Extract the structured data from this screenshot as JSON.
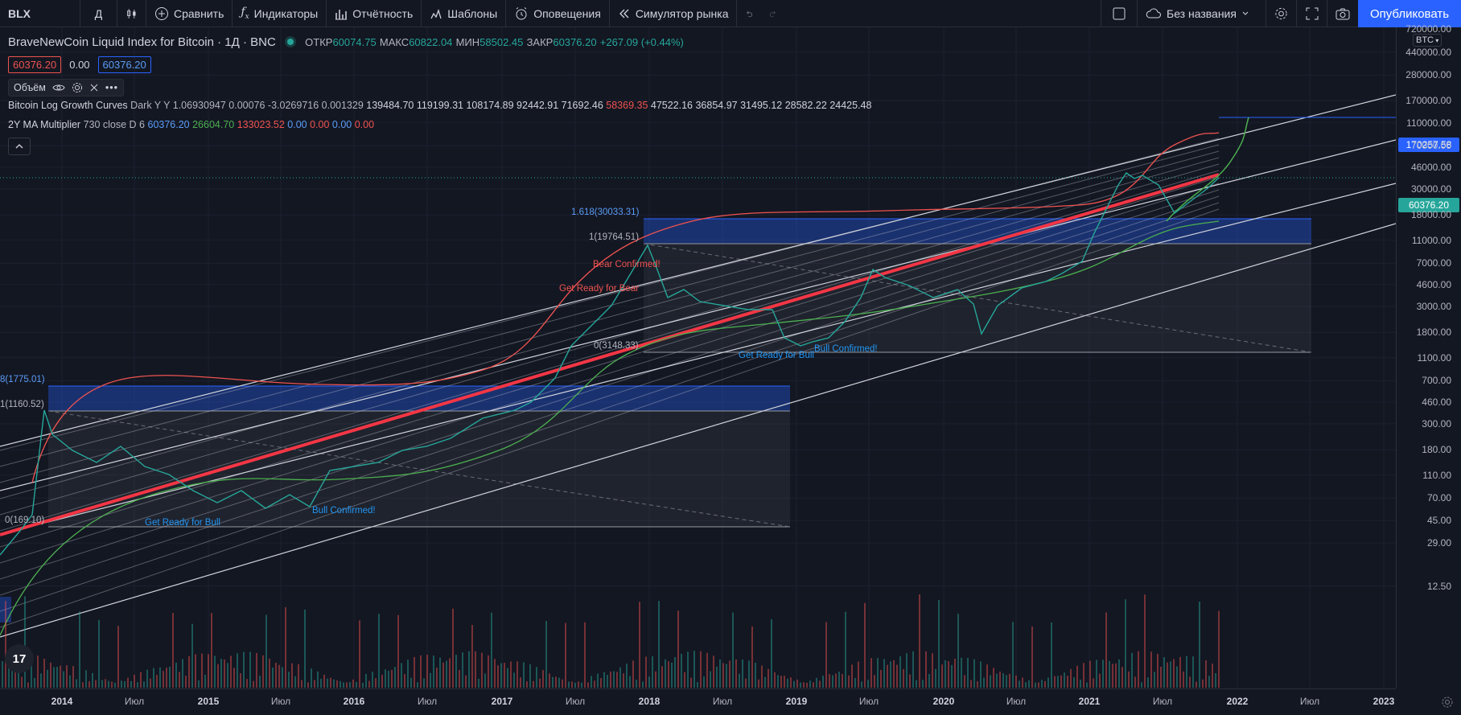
{
  "toolbar": {
    "symbol": "BLX",
    "interval": "Д",
    "compare": "Сравнить",
    "indicators": "Индикаторы",
    "financials": "Отчётность",
    "templates": "Шаблоны",
    "alerts": "Оповещения",
    "replay": "Симулятор рынка",
    "layout_name": "Без названия",
    "publish": "Опубликовать"
  },
  "legend": {
    "title": "BraveNewCoin Liquid Index for Bitcoin · 1Д · BNC",
    "open_label": "ОТКР",
    "open": "60074.75",
    "high_label": "МАКС",
    "high": "60822.04",
    "low_label": "МИН",
    "low": "58502.45",
    "close_label": "ЗАКР",
    "close": "60376.20",
    "change": "+267.09 (+0.44%)",
    "bid": "60376.20",
    "spread": "0.00",
    "ask": "60376.20"
  },
  "volume_label": "Объём",
  "indicators": [
    {
      "name": "Bitcoin Log Growth Curves",
      "params": "Dark Y Y 1.06930947 0.00076 -3.0269716 0.001329",
      "values": [
        {
          "v": "139484.70",
          "c": "#d1d4dc"
        },
        {
          "v": "119199.31",
          "c": "#d1d4dc"
        },
        {
          "v": "108174.89",
          "c": "#d1d4dc"
        },
        {
          "v": "92442.91",
          "c": "#d1d4dc"
        },
        {
          "v": "71692.46",
          "c": "#d1d4dc"
        },
        {
          "v": "58369.35",
          "c": "#ef5350"
        },
        {
          "v": "47522.16",
          "c": "#d1d4dc"
        },
        {
          "v": "36854.97",
          "c": "#d1d4dc"
        },
        {
          "v": "31495.12",
          "c": "#d1d4dc"
        },
        {
          "v": "28582.22",
          "c": "#d1d4dc"
        },
        {
          "v": "24425.48",
          "c": "#d1d4dc"
        }
      ]
    },
    {
      "name": "2Y MA Multiplier",
      "params": "730 close D 6",
      "values": [
        {
          "v": "60376.20",
          "c": "#5b9cf6"
        },
        {
          "v": "26604.70",
          "c": "#4caf50"
        },
        {
          "v": "133023.52",
          "c": "#ef5350"
        },
        {
          "v": "0.00",
          "c": "#5b9cf6"
        },
        {
          "v": "0.00",
          "c": "#ef5350"
        },
        {
          "v": "0.00",
          "c": "#5b9cf6"
        },
        {
          "v": "0.00",
          "c": "#ef5350"
        }
      ]
    }
  ],
  "price_axis": {
    "currency": "BTC",
    "ticks": [
      "720000.00",
      "440000.00",
      "280000.00",
      "170000.00",
      "110000.00",
      "70000.00",
      "46000.00",
      "30000.00",
      "18000.00",
      "11000.00",
      "7000.00",
      "4600.00",
      "3000.00",
      "1800.00",
      "1100.00",
      "700.00",
      "460.00",
      "300.00",
      "180.00",
      "110.00",
      "70.00",
      "45.00",
      "29.00",
      "12.50"
    ],
    "last_price": "60376.20",
    "marker_price": "170257.58"
  },
  "time_axis": {
    "labels": [
      "2014",
      "Июл",
      "2015",
      "Июл",
      "2016",
      "Июл",
      "2017",
      "Июл",
      "2018",
      "Июл",
      "2019",
      "Июл",
      "2020",
      "Июл",
      "2021",
      "Июл",
      "2022",
      "Июл",
      "2023"
    ],
    "bold": [
      true,
      false,
      true,
      false,
      true,
      false,
      true,
      false,
      true,
      false,
      true,
      false,
      true,
      false,
      true,
      false,
      true,
      false,
      true
    ]
  },
  "annotations": {
    "fib_2014_top": "8(1775.01)",
    "fib_2014_one": "1(1160.52)",
    "fib_2014_zero": "0(169.10)",
    "fib_2018_top": "1.618(30033.31)",
    "fib_2018_one": "1(19764.51)",
    "fib_2018_zero": "0(3148.33)",
    "bear_confirmed": "Bear Confirmed!",
    "get_ready_bear": "Get Ready for Bear",
    "get_ready_bull_1": "Get Ready for Bull",
    "bull_confirmed_1": "Bull Confirmed!",
    "get_ready_bull_2": "Get Ready for Bull",
    "bull_confirmed_2": "Bull Confirmed!"
  },
  "colors": {
    "accent": "#2962ff",
    "up": "#26a69a",
    "down": "#ef5350",
    "background": "#131722"
  }
}
